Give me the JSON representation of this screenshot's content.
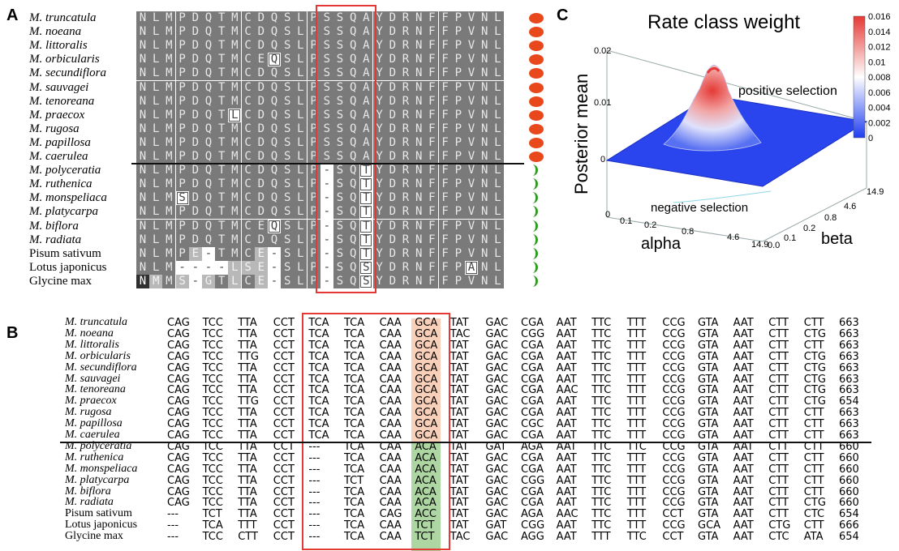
{
  "panels": {
    "a": "A",
    "b": "B",
    "c": "C"
  },
  "species": [
    "M. truncatula",
    "M. noeana",
    "M. littoralis",
    "M. orbicularis",
    "M. secundiflora",
    "M. sauvagei",
    "M. tenoreana",
    "M. praecox",
    "M. rugosa",
    "M. papillosa",
    "M. caerulea",
    "M. polyceratia",
    "M. ruthenica",
    "M. monspeliaca",
    "M. platycarpa",
    "M. biflora",
    "M. radiata",
    "Pisum sativum",
    "Lotus japonicus",
    "Glycine max"
  ],
  "italic_flags": [
    true,
    true,
    true,
    true,
    true,
    true,
    true,
    true,
    true,
    true,
    true,
    true,
    true,
    true,
    true,
    true,
    true,
    false,
    false,
    false
  ],
  "protein_alignment": [
    "NLMPDQTMCDQSLPSSQAYDRNFFPVNL",
    "NLMPDQTMCDQSLPSSQAYDRNFFPVNL",
    "NLMPDQTMCDQSLPSSQAYDRNFFPVNL",
    "NLMPDQTMCEQSLPSSQAYDRNFFPVNL",
    "NLMPDQTMCDQSLPSSQAYDRNFFPVNL",
    "NLMPDQTMCDQSLPSSQAYDRNFFPVNL",
    "NLMPDQTMCDQSLPSSQAYDRNFFPVNL",
    "NLMPDQTLCDQSLPSSQAYDRNFFPVNL",
    "NLMPDQTMCDQSLPSSQAYDRNFFPVNL",
    "NLMPDQTMCDQSLPSSQAYDRNFFPVNL",
    "NLMPDQTMCDQSLPSSQAYDRNFFPVNL",
    "NLMPDQTMCDQSLP-SQTYDRNFFPVNL",
    "NLMPDQTMCDQSLP-SQTYDRNFFPVNL",
    "NLMSDQTMCDQSLP-SQTYDRNFFPVNL",
    "NLMPDQTMCDQSLP-SQTYDRNFFPVNL",
    "NLMPDQTMCEQSLP-SQTYDRNFFPVNL",
    "NLMPDQTMCDQSLP-SQTYDRNFFPVNL",
    "NLMPE-TMCE-SLP-SQTYDRNFFPVNL",
    "NLM----LSE-SLP-SQSYDRNFFPANL",
    "NMMS-GTLCE-SLP-SQSYDRNFFPVNL"
  ],
  "codon_alignment": [
    {
      "codons": [
        "CAG",
        "TCC",
        "TTA",
        "CCT",
        "TCA",
        "TCA",
        "CAA",
        "GCA",
        "TAT",
        "GAC",
        "CGA",
        "AAT",
        "TTC",
        "TTT",
        "CCG",
        "GTA",
        "AAT",
        "CTT",
        "CTT"
      ],
      "length": "663"
    },
    {
      "codons": [
        "CAG",
        "TCC",
        "TTA",
        "CCT",
        "TCA",
        "TCA",
        "CAA",
        "GCA",
        "TAC",
        "GAC",
        "CGG",
        "AAT",
        "TTC",
        "TTT",
        "CCG",
        "GTA",
        "AAT",
        "CTT",
        "CTG"
      ],
      "length": "663"
    },
    {
      "codons": [
        "CAG",
        "TCC",
        "TTA",
        "CCT",
        "TCA",
        "TCA",
        "CAA",
        "GCA",
        "TAT",
        "GAC",
        "CGA",
        "AAT",
        "TTC",
        "TTT",
        "CCG",
        "GTA",
        "AAT",
        "CTT",
        "CTT"
      ],
      "length": "663"
    },
    {
      "codons": [
        "CAG",
        "TCC",
        "TTG",
        "CCT",
        "TCA",
        "TCA",
        "CAA",
        "GCA",
        "TAT",
        "GAC",
        "CGA",
        "AAT",
        "TTC",
        "TTT",
        "CCG",
        "GTA",
        "AAT",
        "CTT",
        "CTG"
      ],
      "length": "663"
    },
    {
      "codons": [
        "CAG",
        "TCC",
        "TTA",
        "CCT",
        "TCA",
        "TCA",
        "CAA",
        "GCA",
        "TAT",
        "GAC",
        "CGA",
        "AAT",
        "TTC",
        "TTT",
        "CCG",
        "GTA",
        "AAT",
        "CTT",
        "CTG"
      ],
      "length": "663"
    },
    {
      "codons": [
        "CAG",
        "TCC",
        "TTA",
        "CCT",
        "TCA",
        "TCA",
        "CAA",
        "GCA",
        "TAT",
        "GAC",
        "CGA",
        "AAT",
        "TTC",
        "TTT",
        "CCG",
        "GTA",
        "AAT",
        "CTT",
        "CTG"
      ],
      "length": "663"
    },
    {
      "codons": [
        "CAG",
        "TCC",
        "TTA",
        "CCT",
        "TCA",
        "TCA",
        "CAA",
        "GCA",
        "TAT",
        "GAC",
        "CGA",
        "AAC",
        "TTC",
        "TTT",
        "CCG",
        "GTA",
        "AAT",
        "CTT",
        "CTG"
      ],
      "length": "663"
    },
    {
      "codons": [
        "CAG",
        "TCC",
        "TTG",
        "CCT",
        "TCA",
        "TCA",
        "CAA",
        "GCA",
        "TAT",
        "GAC",
        "CGA",
        "AAT",
        "TTC",
        "TTT",
        "CCG",
        "GTA",
        "AAT",
        "CTT",
        "CTG"
      ],
      "length": "654"
    },
    {
      "codons": [
        "CAG",
        "TCC",
        "TTA",
        "CCT",
        "TCA",
        "TCA",
        "CAA",
        "GCA",
        "TAT",
        "GAC",
        "CGA",
        "AAT",
        "TTC",
        "TTT",
        "CCG",
        "GTA",
        "AAT",
        "CTT",
        "CTT"
      ],
      "length": "663"
    },
    {
      "codons": [
        "CAG",
        "TCC",
        "TTA",
        "CCT",
        "TCA",
        "TCA",
        "CAA",
        "GCA",
        "TAT",
        "GAC",
        "CGC",
        "AAT",
        "TTC",
        "TTT",
        "CCG",
        "GTA",
        "AAT",
        "CTT",
        "CTT"
      ],
      "length": "663"
    },
    {
      "codons": [
        "CAG",
        "TCC",
        "TTA",
        "CCT",
        "TCA",
        "TCA",
        "CAA",
        "GCA",
        "TAT",
        "GAC",
        "CGA",
        "AAT",
        "TTC",
        "TTT",
        "CCG",
        "GTA",
        "AAT",
        "CTT",
        "CTT"
      ],
      "length": "663"
    },
    {
      "codons": [
        "CAG",
        "TCC",
        "TTA",
        "CCT",
        "---",
        "TCA",
        "CAA",
        "ACA",
        "TAT",
        "GAT",
        "AGA",
        "AAT",
        "TTC",
        "TTC",
        "CCG",
        "GTA",
        "AAT",
        "CTT",
        "CTT"
      ],
      "length": "660"
    },
    {
      "codons": [
        "CAG",
        "TCC",
        "TTA",
        "CCT",
        "---",
        "TCA",
        "CAA",
        "ACA",
        "TAT",
        "GAC",
        "CGA",
        "AAT",
        "TTC",
        "TTT",
        "CCG",
        "GTA",
        "AAT",
        "CTT",
        "CTT"
      ],
      "length": "660"
    },
    {
      "codons": [
        "CAG",
        "TCC",
        "TTA",
        "CCT",
        "---",
        "TCA",
        "CAA",
        "ACA",
        "TAT",
        "GAC",
        "CGA",
        "AAT",
        "TTC",
        "TTT",
        "CCG",
        "GTA",
        "AAT",
        "CTT",
        "CTT"
      ],
      "length": "660"
    },
    {
      "codons": [
        "CAG",
        "TCC",
        "TTA",
        "CCT",
        "---",
        "TCT",
        "CAA",
        "ACA",
        "TAT",
        "GAC",
        "CGG",
        "AAT",
        "TTC",
        "TTT",
        "CCG",
        "GTA",
        "AAT",
        "CTT",
        "CTT"
      ],
      "length": "660"
    },
    {
      "codons": [
        "CAG",
        "TCC",
        "TTA",
        "CCT",
        "---",
        "TCA",
        "CAA",
        "ACA",
        "TAT",
        "GAC",
        "CGA",
        "AAT",
        "TTC",
        "TTT",
        "CCG",
        "GTA",
        "AAT",
        "CTT",
        "CTT"
      ],
      "length": "660"
    },
    {
      "codons": [
        "CAG",
        "TCC",
        "TTA",
        "CCT",
        "---",
        "TCA",
        "CAA",
        "ACA",
        "TAT",
        "GAC",
        "CGA",
        "AAT",
        "TTC",
        "TTT",
        "CCG",
        "GTA",
        "AAT",
        "CTT",
        "CTG"
      ],
      "length": "660"
    },
    {
      "codons": [
        "---",
        "TCT",
        "TTA",
        "CCT",
        "---",
        "TCA",
        "CAG",
        "ACC",
        "TAT",
        "GAC",
        "AGA",
        "AAC",
        "TTC",
        "TTT",
        "CCT",
        "GTA",
        "AAT",
        "CTT",
        "CTC"
      ],
      "length": "654"
    },
    {
      "codons": [
        "---",
        "TCA",
        "TTT",
        "CCT",
        "---",
        "TCA",
        "CAA",
        "TCT",
        "TAT",
        "GAT",
        "CGG",
        "AAT",
        "TTC",
        "TTT",
        "CCG",
        "GCA",
        "AAT",
        "CTG",
        "CTT"
      ],
      "length": "666"
    },
    {
      "codons": [
        "---",
        "TCC",
        "CTT",
        "CCT",
        "---",
        "TCA",
        "CAA",
        "TCT",
        "TAC",
        "GAC",
        "AGG",
        "AAT",
        "TTT",
        "TTC",
        "CCT",
        "GTA",
        "AAT",
        "CTC",
        "ATA"
      ],
      "length": "654"
    }
  ],
  "panel_c": {
    "title": "Rate class weight",
    "zlabel": "Posterior mean",
    "z_ticks": [
      "0",
      "0.01",
      "0.02"
    ],
    "alpha_label": "alpha",
    "alpha_ticks": [
      "0",
      "0.1",
      "0.2",
      "0.8",
      "4.6",
      "14.9"
    ],
    "beta_label": "beta",
    "beta_ticks": [
      "0.0",
      "0.1",
      "0.2",
      "0.8",
      "4.6",
      "14.9"
    ],
    "colorbar_ticks": [
      "0.016",
      "0.014",
      "0.012",
      "0.01",
      "0.008",
      "0.006",
      "0.004",
      "0.002",
      "0"
    ],
    "positive_label": "positive selection",
    "negative_label": "negative selection",
    "colors": {
      "high": "#e53935",
      "mid": "#ffffff",
      "low": "#1f3ef0"
    }
  },
  "markers": {
    "positive_color": "#e8481c",
    "negative_color": "#2e9e1f",
    "box_color": "#e53935"
  }
}
